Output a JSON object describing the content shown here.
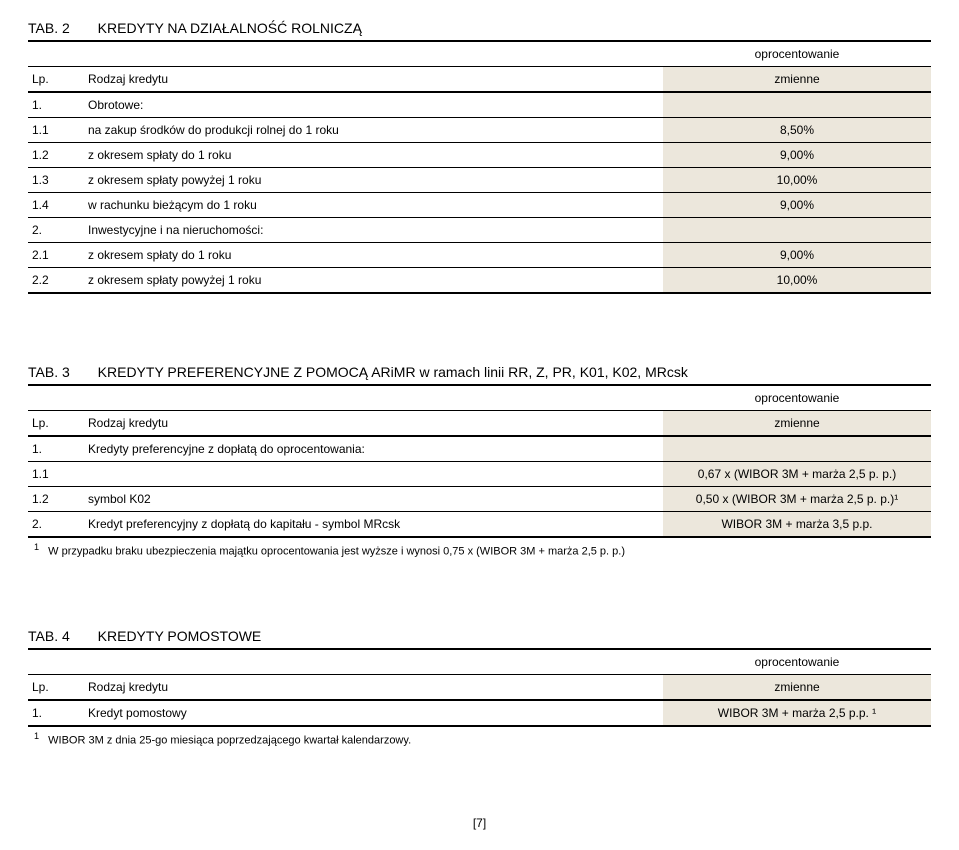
{
  "colors": {
    "background": "#ffffff",
    "text": "#000000",
    "shaded": "#ece7dc",
    "border": "#000000"
  },
  "tab2": {
    "title_prefix": "TAB. 2",
    "title_text": "KREDYTY NA DZIAŁALNOŚĆ ROLNICZĄ",
    "header_oprocent": "oprocentowanie",
    "header_lp": "Lp.",
    "header_rodzaj": "Rodzaj kredytu",
    "header_zmienne": "zmienne",
    "rows": [
      {
        "lp": "1.",
        "desc": "Obrotowe:",
        "val": ""
      },
      {
        "lp": "1.1",
        "desc": "na zakup środków do produkcji rolnej  do 1 roku",
        "val": "8,50%"
      },
      {
        "lp": "1.2",
        "desc": "z okresem spłaty do 1 roku",
        "val": "9,00%"
      },
      {
        "lp": "1.3",
        "desc": "z okresem spłaty powyżej 1 roku",
        "val": "10,00%"
      },
      {
        "lp": "1.4",
        "desc": "w rachunku bieżącym do 1 roku",
        "val": "9,00%"
      },
      {
        "lp": "2.",
        "desc": "Inwestycyjne i na nieruchomości:",
        "val": ""
      },
      {
        "lp": "2.1",
        "desc": "z okresem spłaty do 1 roku",
        "val": "9,00%"
      },
      {
        "lp": "2.2",
        "desc": "z okresem spłaty powyżej 1 roku",
        "val": "10,00%"
      }
    ]
  },
  "tab3": {
    "title_prefix": "TAB. 3",
    "title_text": "KREDYTY PREFERENCYJNE Z POMOCĄ ARiMR w ramach linii RR, Z, PR, K01, K02, MRcsk",
    "header_oprocent": "oprocentowanie",
    "header_lp": "Lp.",
    "header_rodzaj": "Rodzaj kredytu",
    "header_zmienne": "zmienne",
    "rows": [
      {
        "lp": "1.",
        "desc": "Kredyty preferencyjne z dopłatą do oprocentowania:",
        "val": ""
      },
      {
        "lp": "1.1",
        "desc": "",
        "val": "0,67 x (WIBOR 3M + marża 2,5 p. p.)"
      },
      {
        "lp": "1.2",
        "desc": "symbol K02",
        "val": "0,50 x (WIBOR 3M + marża 2,5 p. p.)¹"
      },
      {
        "lp": "2.",
        "desc": "Kredyt preferencyjny z dopłatą do kapitału - symbol MRcsk",
        "val": "WIBOR 3M + marża 3,5 p.p."
      }
    ],
    "footnote_marker": "1",
    "footnote_text": "W przypadku braku ubezpieczenia majątku oprocentowania jest wyższe i wynosi 0,75 x (WIBOR 3M + marża 2,5 p. p.)"
  },
  "tab4": {
    "title_prefix": "TAB. 4",
    "title_text": "KREDYTY POMOSTOWE",
    "header_oprocent": "oprocentowanie",
    "header_lp": "Lp.",
    "header_rodzaj": "Rodzaj kredytu",
    "header_zmienne": "zmienne",
    "rows": [
      {
        "lp": "1.",
        "desc": "Kredyt pomostowy",
        "val": "WIBOR 3M + marża 2,5 p.p. ¹"
      }
    ],
    "footnote_marker": "1",
    "footnote_text": "WIBOR 3M z dnia 25-go miesiąca poprzedzającego kwartał kalendarzowy."
  },
  "page_number": "[7]"
}
